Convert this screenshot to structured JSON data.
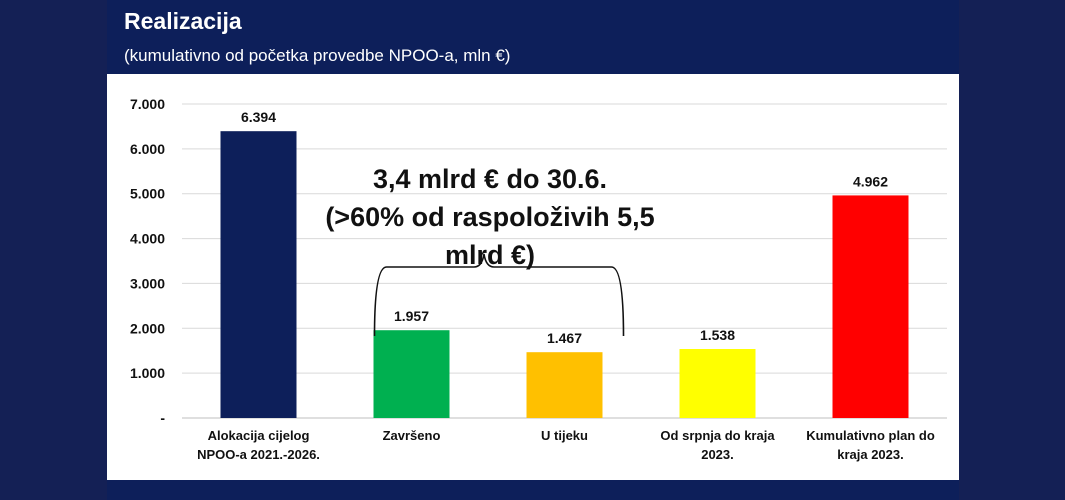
{
  "title": "Realizacija",
  "subtitle": "(kumulativno od početka provedbe NPOO-a, mln €)",
  "annotation": {
    "line1": "3,4 mlrd € do 30.6.",
    "line2": "(>60% od raspoloživih 5,5 mlrd €)"
  },
  "colors": {
    "background": "#142055",
    "header": "#0d1f5a",
    "panel": "#ffffff"
  },
  "chart_data": {
    "type": "bar",
    "categories": [
      [
        "Alokacija cijelog",
        "NPOO-a 2021.-2026."
      ],
      [
        "Završeno"
      ],
      [
        "U tijeku"
      ],
      [
        "Od srpnja do kraja",
        "2023."
      ],
      [
        "Kumulativno plan do",
        "kraja 2023."
      ]
    ],
    "values": [
      6394,
      1957,
      1467,
      1538,
      4962
    ],
    "value_labels": [
      "6.394",
      "1.957",
      "1.467",
      "1.538",
      "4.962"
    ],
    "bar_colors": [
      "#0d1f5a",
      "#00b050",
      "#ffc000",
      "#ffff00",
      "#ff0000"
    ],
    "ylim": [
      0,
      7000
    ],
    "yticks": [
      0,
      1000,
      2000,
      3000,
      4000,
      5000,
      6000,
      7000
    ],
    "ytick_labels": [
      "-",
      "1.000",
      "2.000",
      "3.000",
      "4.000",
      "5.000",
      "6.000",
      "7.000"
    ],
    "grid": true,
    "brace_spans_categories": [
      1,
      2
    ]
  }
}
